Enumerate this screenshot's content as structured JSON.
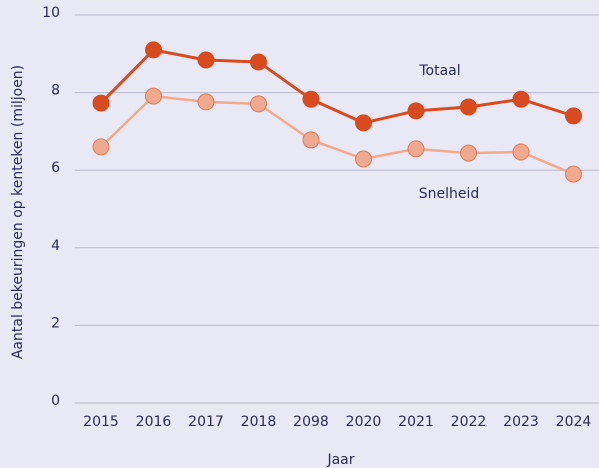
{
  "chart_data": {
    "type": "line",
    "x_label": "Jaar",
    "y_label": "Aantal bekeuringen op kenteken (miljoen)",
    "categories": [
      "2015",
      "2016",
      "2017",
      "2018",
      "2098",
      "2020",
      "2021",
      "2022",
      "2023",
      "2024"
    ],
    "series": [
      {
        "name": "Totaal",
        "color": "#d94a1e",
        "marker_fill": "#d94a1e",
        "values": [
          7.73,
          9.1,
          8.84,
          8.79,
          7.83,
          7.22,
          7.53,
          7.63,
          7.83,
          7.4
        ]
      },
      {
        "name": "Snelheid",
        "color": "#f2a98c",
        "marker_fill": "#f0a98e",
        "values": [
          6.6,
          7.91,
          7.76,
          7.71,
          6.78,
          6.29,
          6.55,
          6.44,
          6.47,
          5.9
        ]
      }
    ],
    "ylim": [
      0,
      10
    ],
    "yticks": [
      0,
      2,
      4,
      6,
      8,
      10
    ],
    "grid": true
  }
}
